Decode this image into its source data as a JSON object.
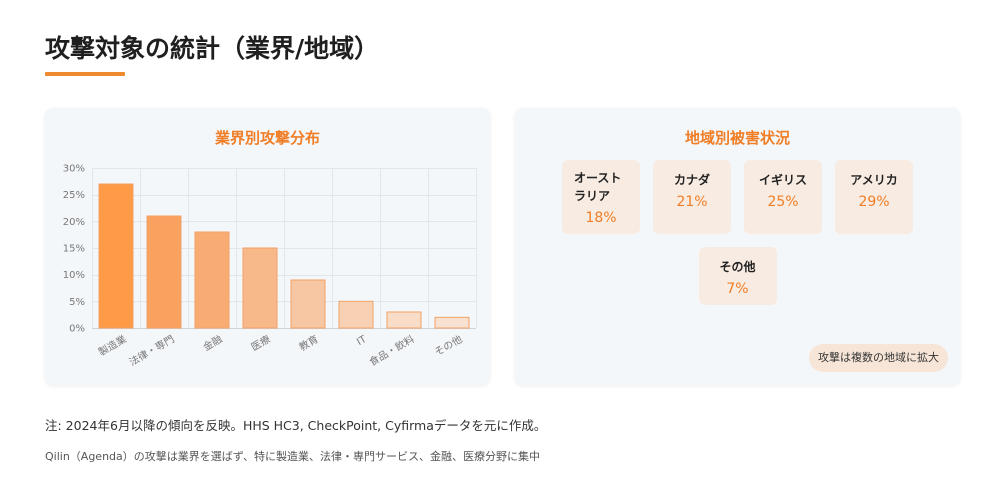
{
  "header": {
    "title": "攻撃対象の統計（業界/地域）"
  },
  "colors": {
    "accent": "#f07e26",
    "underline": "#f08a2e",
    "card_bg": "#f4f7fa",
    "tile_bg": "#f8ebe2",
    "pill_bg": "#f7e6d8"
  },
  "chart_data": {
    "type": "bar",
    "title": "業界別攻撃分布",
    "categories": [
      "製造業",
      "法律・専門",
      "金融",
      "医療",
      "教育",
      "IT",
      "食品・飲料",
      "その他"
    ],
    "values": [
      27,
      21,
      18,
      15,
      9,
      5,
      3,
      2
    ],
    "xlabel": "",
    "ylabel": "",
    "ylim": [
      0,
      30
    ],
    "yticks": [
      0,
      5,
      10,
      15,
      20,
      25,
      30
    ],
    "ytick_labels": [
      "0%",
      "5%",
      "10%",
      "15%",
      "20%",
      "25%",
      "30%"
    ],
    "grid": true,
    "bar_colors": [
      "#ff9a47",
      "#fba160",
      "#f8ac74",
      "#f7b88a",
      "#f7c6a2",
      "#f8d1b4",
      "#f8dcc7",
      "#f8e1d1"
    ],
    "bar_stroke": "#f2a266"
  },
  "region": {
    "title": "地域別被害状況",
    "tiles": [
      {
        "label": "オーストラリア",
        "value": "18%"
      },
      {
        "label": "カナダ",
        "value": "21%"
      },
      {
        "label": "イギリス",
        "value": "25%"
      },
      {
        "label": "アメリカ",
        "value": "29%"
      },
      {
        "label": "その他",
        "value": "7%"
      }
    ],
    "note": "攻撃は複数の地域に拡大"
  },
  "footer": {
    "note": "注: 2024年6月以降の傾向を反映。HHS HC3, CheckPoint, Cyfirmaデータを元に作成。",
    "summary": "Qilin（Agenda）の攻撃は業界を選ばず、特に製造業、法律・専門サービス、金融、医療分野に集中"
  }
}
